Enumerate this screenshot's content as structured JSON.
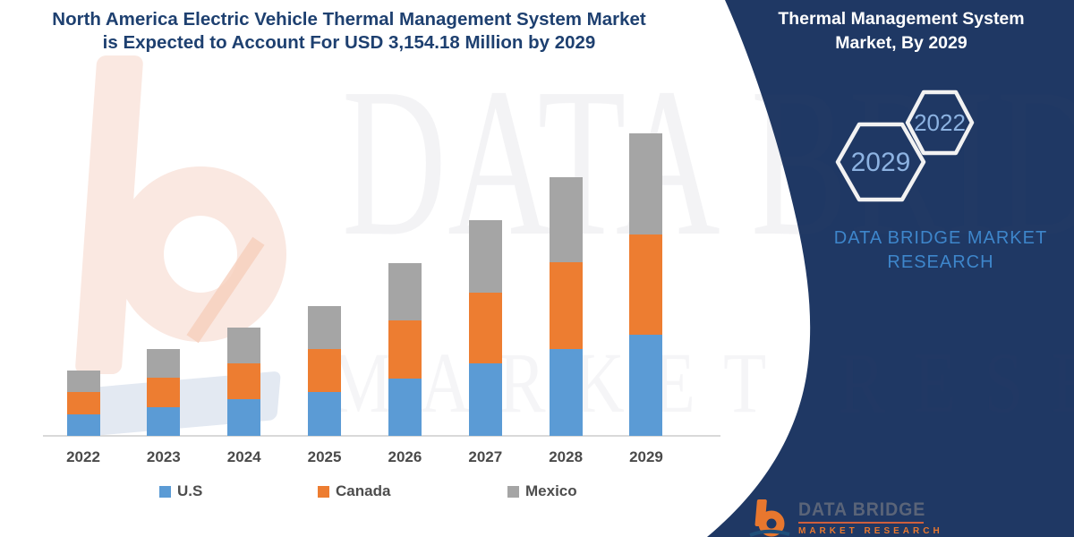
{
  "header": {
    "title_line1": "North America Electric Vehicle Thermal Management System Market",
    "title_line2": "is Expected to Account For USD 3,154.18 Million by 2029"
  },
  "panel": {
    "title_line1": "Thermal Management System",
    "title_line2": "Market, By 2029",
    "hexagons": [
      {
        "label": "2029"
      },
      {
        "label": "2022"
      }
    ],
    "brand_text": "DATA BRIDGE MARKET RESEARCH",
    "bg_color": "#1f3864",
    "brand_text_color": "#3e86cb",
    "hex_year_color": "#8db3e2"
  },
  "watermark": {
    "big_text": "DATA BRIDGE",
    "sub_text": "MARKET RESEARCH"
  },
  "logo": {
    "name_text": "DATA BRIDGE",
    "sub_text": "MARKET RESEARCH",
    "b_color": "#e8772e"
  },
  "chart_data": {
    "type": "bar",
    "stacked": true,
    "title": "North America Electric Vehicle Thermal Management System Market (USD Million)",
    "unit": "USD Million",
    "categories": [
      "2022",
      "2023",
      "2024",
      "2025",
      "2026",
      "2027",
      "2028",
      "2029"
    ],
    "series": [
      {
        "name": "U.S",
        "color": "#5b9bd5",
        "values": [
          224,
          299,
          383,
          457,
          597,
          756,
          905,
          1054
        ]
      },
      {
        "name": "Canada",
        "color": "#ed7d31",
        "values": [
          233,
          308,
          373,
          448,
          607,
          737,
          905,
          1045
        ]
      },
      {
        "name": "Mexico",
        "color": "#a5a5a5",
        "values": [
          224,
          298,
          373,
          448,
          597,
          756,
          887,
          1055.18
        ]
      }
    ],
    "totals": [
      681,
      905,
      1129,
      1353,
      1801,
      2249,
      2697,
      3154.18
    ],
    "highlight_total_2029": 3154.18,
    "ylim": [
      0,
      3300
    ],
    "y_axis_visible": false,
    "gridlines": false,
    "legend_position": "bottom",
    "axis_label_color": "#4a4a4a",
    "axis_line_color": "#d9d9d9"
  }
}
